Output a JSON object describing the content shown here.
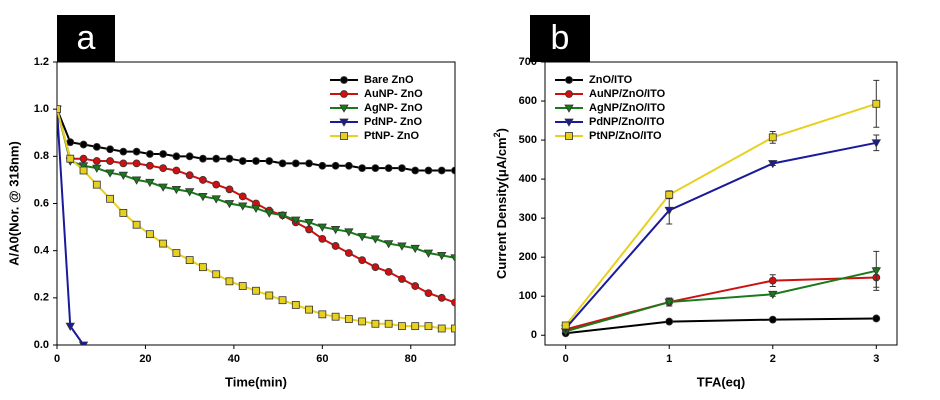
{
  "chart_data": [
    {
      "type": "line",
      "panel_label": "a",
      "xlabel": "Time(min)",
      "ylabel": "A/A0(Nor. @ 318nm)",
      "xlim": [
        0,
        90
      ],
      "ylim": [
        0,
        1.2
      ],
      "xticks": [
        0,
        20,
        40,
        60,
        80
      ],
      "yticks": [
        {
          "value": 0,
          "label": "0.0"
        },
        0.2,
        0.4,
        0.6,
        0.8,
        {
          "value": 1,
          "label": "1.0"
        },
        1.2
      ],
      "legend": "upper right",
      "series": [
        {
          "name": "Bare ZnO",
          "color": "#000000",
          "marker": "circle",
          "x": [
            0,
            3,
            6,
            9,
            12,
            15,
            18,
            21,
            24,
            27,
            30,
            33,
            36,
            39,
            42,
            45,
            48,
            51,
            54,
            57,
            60,
            63,
            66,
            69,
            72,
            75,
            78,
            81,
            84,
            87,
            90
          ],
          "values": [
            1.0,
            0.86,
            0.85,
            0.84,
            0.83,
            0.82,
            0.82,
            0.81,
            0.81,
            0.8,
            0.8,
            0.79,
            0.79,
            0.79,
            0.78,
            0.78,
            0.78,
            0.77,
            0.77,
            0.77,
            0.76,
            0.76,
            0.76,
            0.75,
            0.75,
            0.75,
            0.75,
            0.74,
            0.74,
            0.74,
            0.74
          ]
        },
        {
          "name": "AuNP- ZnO",
          "color": "#d01010",
          "marker": "circle",
          "x": [
            0,
            3,
            6,
            9,
            12,
            15,
            18,
            21,
            24,
            27,
            30,
            33,
            36,
            39,
            42,
            45,
            48,
            51,
            54,
            57,
            60,
            63,
            66,
            69,
            72,
            75,
            78,
            81,
            84,
            87,
            90
          ],
          "values": [
            1.0,
            0.79,
            0.79,
            0.78,
            0.78,
            0.77,
            0.77,
            0.76,
            0.75,
            0.74,
            0.72,
            0.7,
            0.68,
            0.66,
            0.63,
            0.6,
            0.57,
            0.55,
            0.52,
            0.49,
            0.45,
            0.42,
            0.39,
            0.36,
            0.33,
            0.31,
            0.28,
            0.25,
            0.22,
            0.2,
            0.18
          ]
        },
        {
          "name": "AgNP- ZnO",
          "color": "#1a7a1a",
          "marker": "triangle-down",
          "x": [
            0,
            3,
            6,
            9,
            12,
            15,
            18,
            21,
            24,
            27,
            30,
            33,
            36,
            39,
            42,
            45,
            48,
            51,
            54,
            57,
            60,
            63,
            66,
            69,
            72,
            75,
            78,
            81,
            84,
            87,
            90
          ],
          "values": [
            1.0,
            0.78,
            0.76,
            0.75,
            0.73,
            0.72,
            0.7,
            0.69,
            0.67,
            0.66,
            0.65,
            0.63,
            0.62,
            0.6,
            0.59,
            0.58,
            0.56,
            0.55,
            0.53,
            0.52,
            0.5,
            0.49,
            0.48,
            0.46,
            0.45,
            0.43,
            0.42,
            0.41,
            0.39,
            0.38,
            0.37
          ]
        },
        {
          "name": "PdNP- ZnO",
          "color": "#1a1a9a",
          "marker": "triangle-down",
          "x": [
            0,
            3,
            6
          ],
          "values": [
            1.0,
            0.08,
            0
          ]
        },
        {
          "name": "PtNP- ZnO",
          "color": "#e8d020",
          "marker": "square",
          "x": [
            0,
            3,
            6,
            9,
            12,
            15,
            18,
            21,
            24,
            27,
            30,
            33,
            36,
            39,
            42,
            45,
            48,
            51,
            54,
            57,
            60,
            63,
            66,
            69,
            72,
            75,
            78,
            81,
            84,
            87,
            90
          ],
          "values": [
            1.0,
            0.79,
            0.74,
            0.68,
            0.62,
            0.56,
            0.51,
            0.47,
            0.43,
            0.39,
            0.36,
            0.33,
            0.3,
            0.27,
            0.25,
            0.23,
            0.21,
            0.19,
            0.17,
            0.15,
            0.13,
            0.12,
            0.11,
            0.1,
            0.09,
            0.09,
            0.08,
            0.08,
            0.08,
            0.07,
            0.07
          ]
        }
      ]
    },
    {
      "type": "line",
      "panel_label": "b",
      "xlabel": "TFA(eq)",
      "ylabel": [
        "Current Density(μA/cm",
        "2",
        ")"
      ],
      "xlim": [
        -0.2,
        3.2
      ],
      "ylim": [
        -25,
        700
      ],
      "xticks": [
        0,
        1,
        2,
        3
      ],
      "yticks": [
        0,
        100,
        200,
        300,
        400,
        500,
        600,
        700
      ],
      "legend": "upper left",
      "x": [
        0,
        1,
        2,
        3
      ],
      "series": [
        {
          "name": "ZnO/ITO",
          "color": "#000000",
          "marker": "circle",
          "values": [
            5,
            35,
            40,
            43
          ],
          "errors": [
            3,
            5,
            4,
            4
          ]
        },
        {
          "name": "AuNP/ZnO/ITO",
          "color": "#d01010",
          "marker": "circle",
          "values": [
            15,
            85,
            140,
            148
          ],
          "errors": [
            3,
            10,
            15,
            25
          ]
        },
        {
          "name": "AgNP/ZnO/ITO",
          "color": "#1a7a1a",
          "marker": "triangle-down",
          "values": [
            10,
            85,
            105,
            165
          ],
          "errors": [
            3,
            10,
            5,
            50
          ]
        },
        {
          "name": "PdNP/ZnO/ITO",
          "color": "#1a1a9a",
          "marker": "triangle-down",
          "values": [
            18,
            320,
            440,
            493
          ],
          "errors": [
            3,
            35,
            5,
            20
          ]
        },
        {
          "name": "PtNP/ZnO/ITO",
          "color": "#e8d020",
          "marker": "square",
          "values": [
            25,
            360,
            507,
            593
          ],
          "errors": [
            3,
            10,
            15,
            60
          ]
        }
      ]
    }
  ]
}
